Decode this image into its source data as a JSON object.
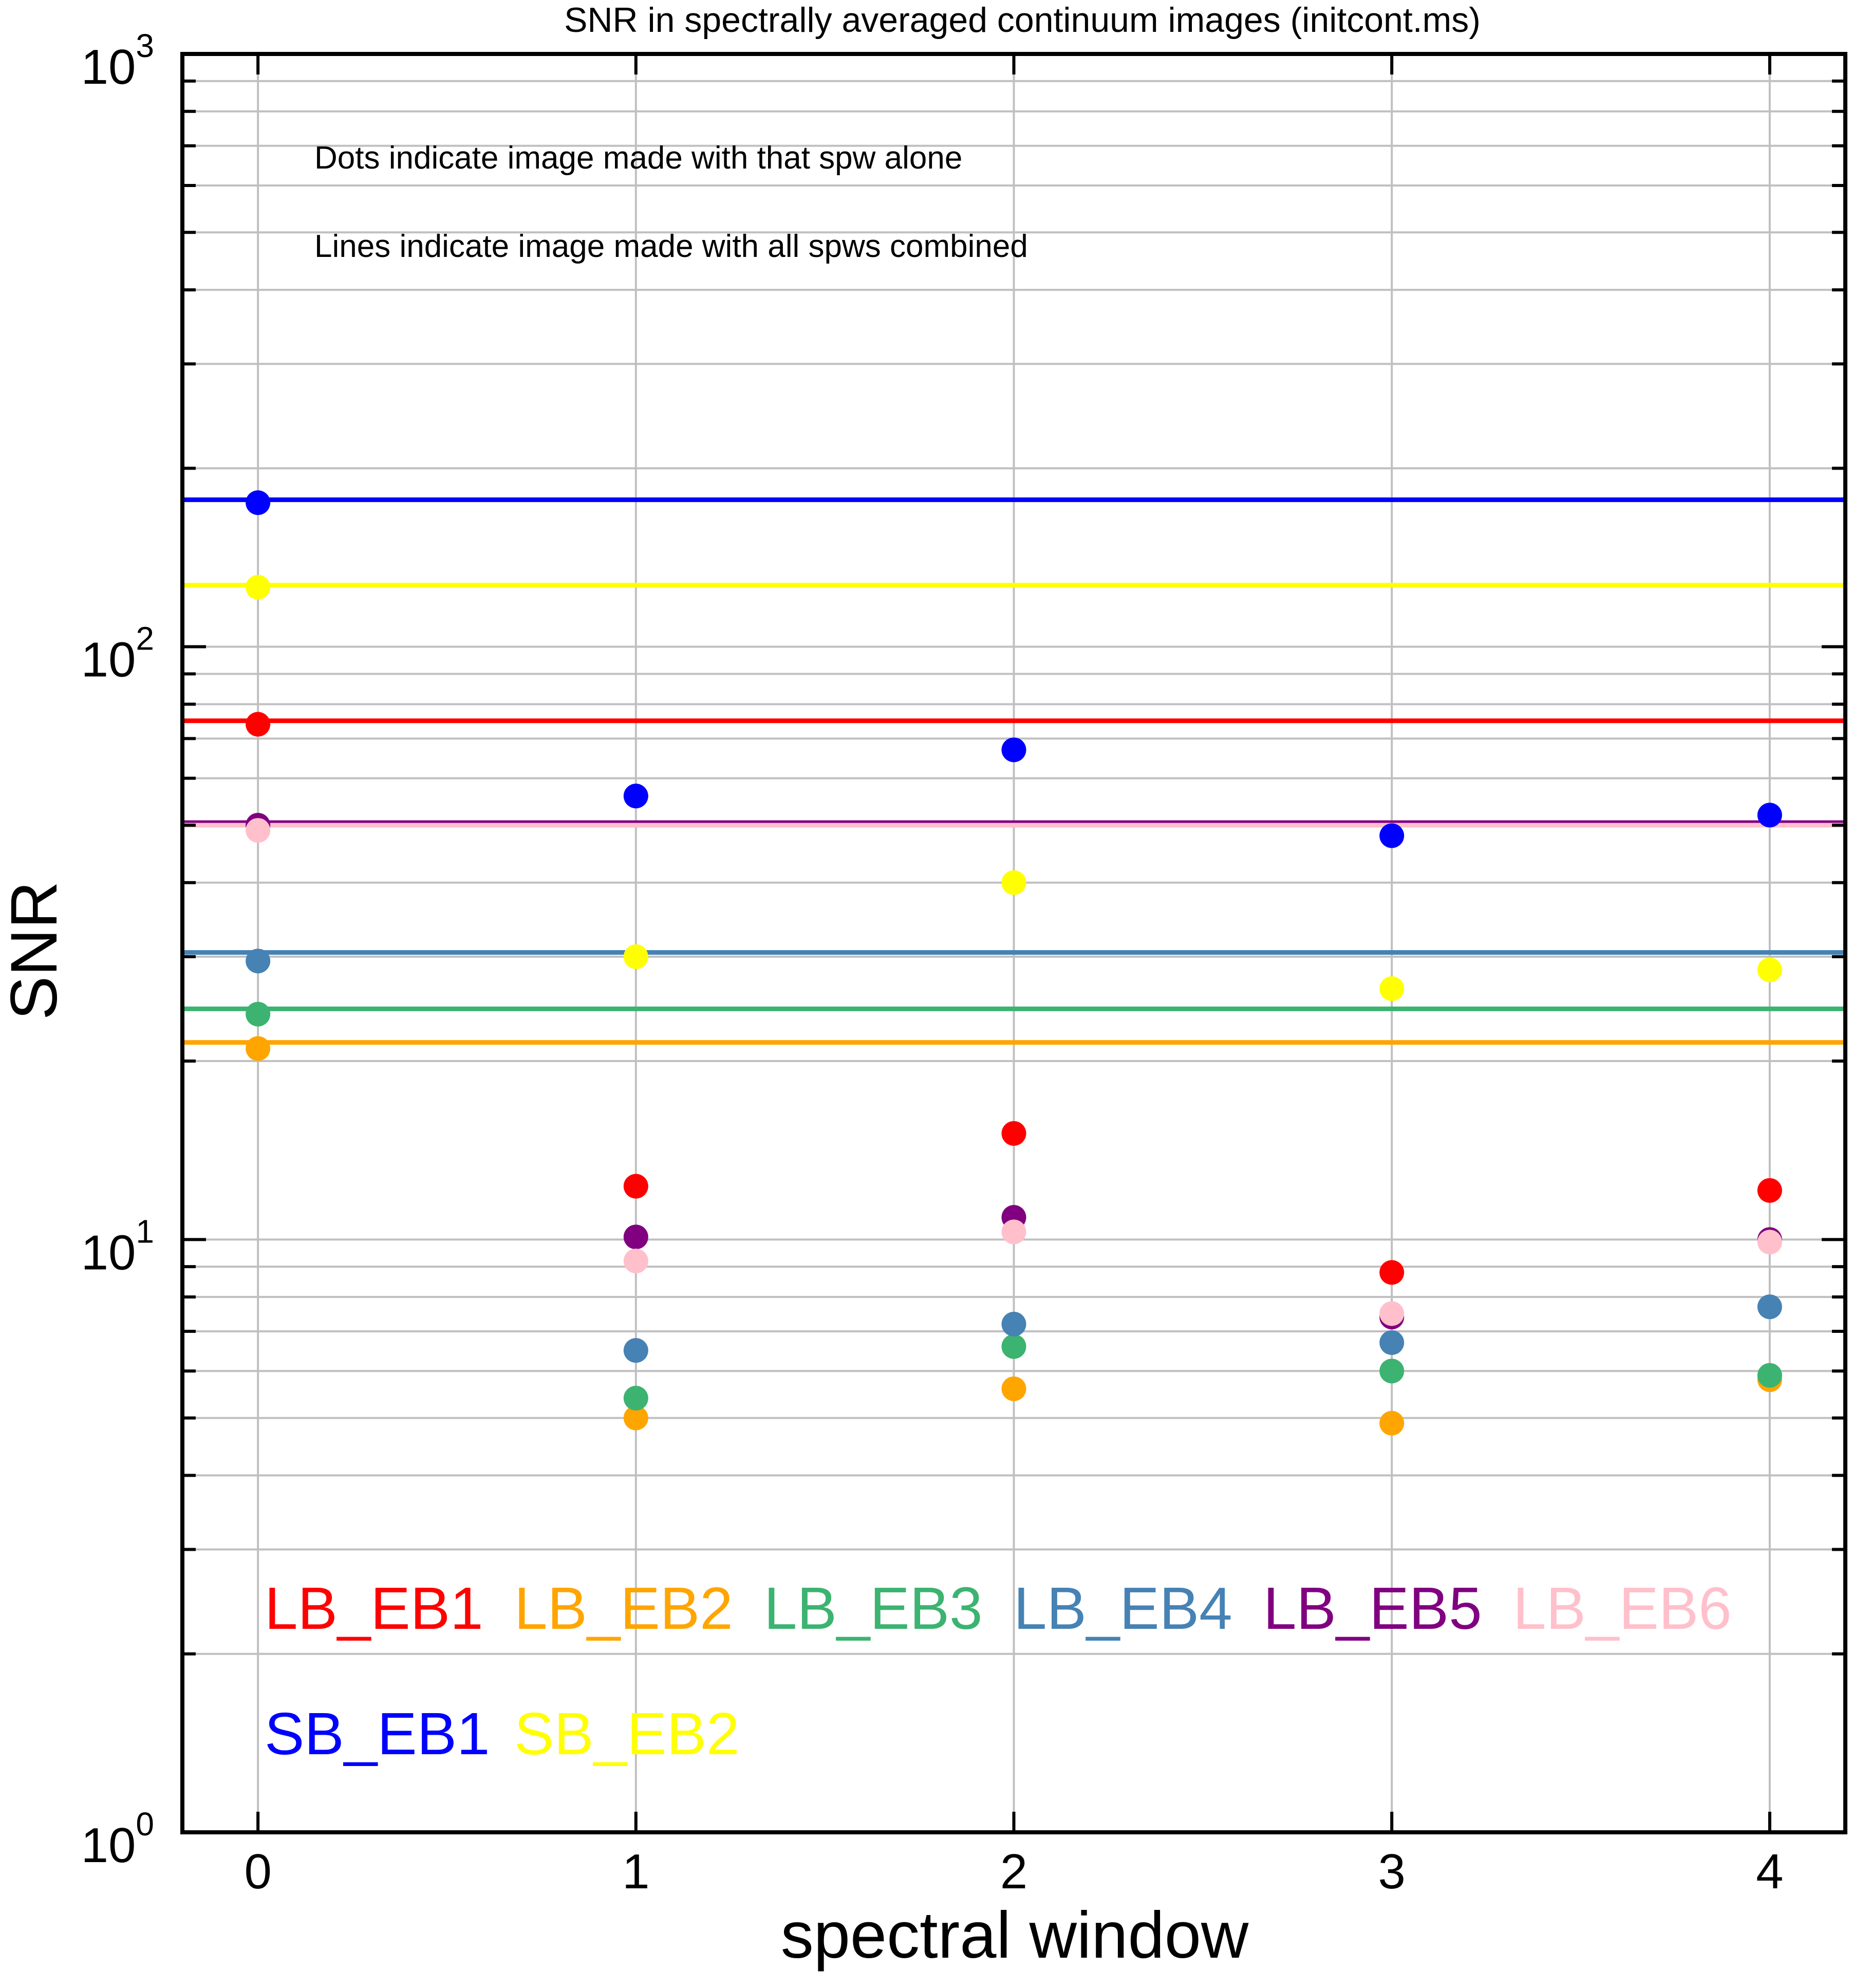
{
  "chart_data": {
    "type": "scatter",
    "title": "SNR in spectrally averaged continuum images (initcont.ms)",
    "xlabel": "spectral window",
    "ylabel": "SNR",
    "x": [
      0,
      1,
      2,
      3,
      4
    ],
    "x_ticks": [
      "0",
      "1",
      "2",
      "3",
      "4"
    ],
    "xlim": [
      -0.2,
      4.2
    ],
    "yscale": "log",
    "ylim": [
      1,
      1000
    ],
    "y_ticks": [
      {
        "value": 1,
        "base": "10",
        "exp": "0"
      },
      {
        "value": 10,
        "base": "10",
        "exp": "1"
      },
      {
        "value": 100,
        "base": "10",
        "exp": "2"
      },
      {
        "value": 1000,
        "base": "10",
        "exp": "3"
      }
    ],
    "grid": true,
    "annotations": [
      "Dots indicate image made with that spw alone",
      "Lines indicate image made with all spws combined"
    ],
    "legend_placement": "bottom-left",
    "series": [
      {
        "name": "LB_EB1",
        "color": "#ff0000",
        "values": [
          74,
          12.3,
          15.1,
          8.8,
          12.1
        ],
        "combined": 75
      },
      {
        "name": "LB_EB2",
        "color": "#ffa500",
        "values": [
          21,
          5.0,
          5.6,
          4.9,
          5.8
        ],
        "combined": 21.5
      },
      {
        "name": "LB_EB3",
        "color": "#3cb371",
        "values": [
          24,
          5.4,
          6.6,
          6.0,
          5.9
        ],
        "combined": 24.5
      },
      {
        "name": "LB_EB4",
        "color": "#4682b4",
        "values": [
          29.5,
          6.5,
          7.2,
          6.7,
          7.7
        ],
        "combined": 30.5
      },
      {
        "name": "LB_EB5",
        "color": "#800080",
        "values": [
          50,
          10.1,
          10.9,
          7.4,
          10.0
        ],
        "combined": 50.5
      },
      {
        "name": "LB_EB6",
        "color": "#ffc0cb",
        "values": [
          49,
          9.2,
          10.3,
          7.5,
          9.9
        ],
        "combined": 50
      },
      {
        "name": "SB_EB1",
        "color": "#0000ff",
        "values": [
          175,
          56,
          67,
          48,
          52
        ],
        "combined": 177
      },
      {
        "name": "SB_EB2",
        "color": "#ffff00",
        "values": [
          126,
          30,
          40,
          26.5,
          28.5
        ],
        "combined": 127
      }
    ]
  }
}
